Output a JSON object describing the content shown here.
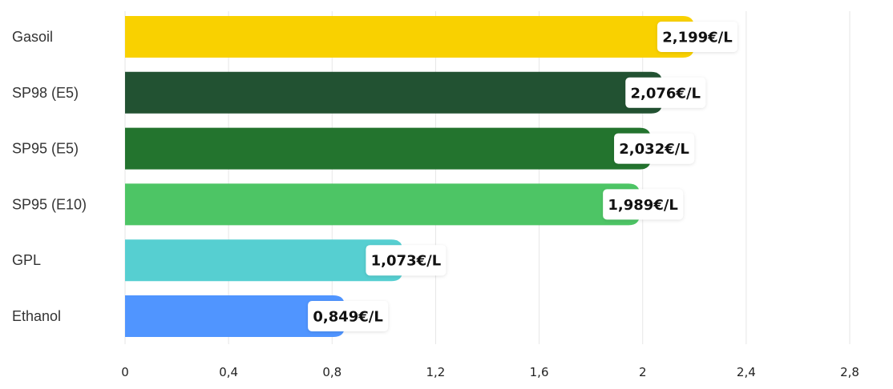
{
  "chart_data": {
    "type": "bar",
    "orientation": "horizontal",
    "categories": [
      "Gasoil",
      "SP98 (E5)",
      "SP95 (E5)",
      "SP95 (E10)",
      "GPL",
      "Ethanol"
    ],
    "values": [
      2.199,
      2.076,
      2.032,
      1.989,
      1.073,
      0.849
    ],
    "data_labels": [
      "2,199€/L",
      "2,076€/L",
      "2,032€/L",
      "1,989€/L",
      "1,073€/L",
      "0,849€/L"
    ],
    "colors": [
      "#f9d100",
      "#225232",
      "#23742e",
      "#4dc565",
      "#56cfd1",
      "#5095ff"
    ],
    "xlim": [
      0,
      2.8
    ],
    "xticks": [
      0,
      0.4,
      0.8,
      1.2,
      1.6,
      2,
      2.4,
      2.8
    ],
    "xtick_labels": [
      "0",
      "0,4",
      "0,8",
      "1,2",
      "1,6",
      "2",
      "2,4",
      "2,8"
    ],
    "grid": "vertical",
    "title": "",
    "xlabel": "",
    "ylabel": ""
  }
}
